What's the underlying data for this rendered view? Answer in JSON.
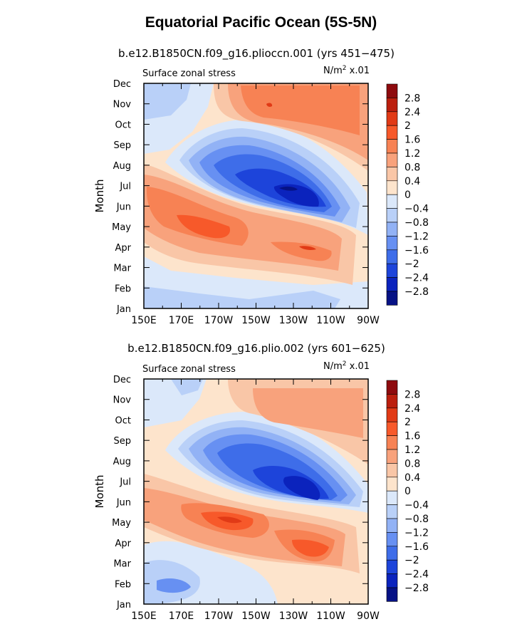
{
  "title": "Equatorial Pacific Ocean (5S-5N)",
  "colorbar": {
    "labels": [
      "2.8",
      "2.4",
      "2",
      "1.6",
      "1.2",
      "0.8",
      "0.4",
      "0",
      "−0.4",
      "−0.8",
      "−1.2",
      "−1.6",
      "−2",
      "−2.4",
      "−2.8"
    ],
    "colors": [
      "#8e0b0e",
      "#bb1f0e",
      "#e13a16",
      "#f7592a",
      "#f78254",
      "#f8a27c",
      "#f9c6a7",
      "#fde4cc",
      "#dbe8fa",
      "#b9d0f8",
      "#92b2f5",
      "#6790f2",
      "#3e6de9",
      "#1d44da",
      "#0b23bd",
      "#061285"
    ]
  },
  "chart_data": [
    {
      "type": "heatmap",
      "title": "b.e12.B1850CN.f09_g16.plioccn.001 (yrs 451−475)",
      "left_label": "Surface zonal stress",
      "right_label": "N/m² x.01",
      "ylabel": "Month",
      "xlabel": "",
      "x_ticks": [
        "150E",
        "170E",
        "170W",
        "150W",
        "130W",
        "110W",
        "90W"
      ],
      "y_ticks": [
        "Jan",
        "Feb",
        "Mar",
        "Apr",
        "May",
        "Jun",
        "Jul",
        "Aug",
        "Sep",
        "Oct",
        "Nov",
        "Dec"
      ],
      "x_range": [
        "150E",
        "90W"
      ],
      "y_range": [
        "Jan",
        "Dec"
      ],
      "units": "N/m² x.01",
      "contour_levels": [
        -2.8,
        -2.4,
        -2,
        -1.6,
        -1.2,
        -0.8,
        -0.4,
        0,
        0.4,
        0.8,
        1.2,
        1.6,
        2,
        2.4,
        2.8
      ],
      "features": [
        {
          "lon": 230,
          "month": 6.3,
          "value": -2.8
        },
        {
          "lon": 198,
          "month": 4.1,
          "value": 1.7
        },
        {
          "lon": 220,
          "month": 10.1,
          "value": 1.2
        },
        {
          "lon": 160,
          "month": 11.1,
          "value": -0.6
        }
      ]
    },
    {
      "type": "heatmap",
      "title": "b.e12.B1850CN.f09_g16.plio.002 (yrs 601−625)",
      "left_label": "Surface zonal stress",
      "right_label": "N/m² x.01",
      "ylabel": "Month",
      "xlabel": "",
      "x_ticks": [
        "150E",
        "170E",
        "170W",
        "150W",
        "130W",
        "110W",
        "90W"
      ],
      "y_ticks": [
        "Jan",
        "Feb",
        "Mar",
        "Apr",
        "May",
        "Jun",
        "Jul",
        "Aug",
        "Sep",
        "Oct",
        "Nov",
        "Dec"
      ],
      "x_range": [
        "150E",
        "90W"
      ],
      "y_range": [
        "Jan",
        "Dec"
      ],
      "units": "N/m² x.01",
      "contour_levels": [
        -2.8,
        -2.4,
        -2,
        -1.6,
        -1.2,
        -0.8,
        -0.4,
        0,
        0.4,
        0.8,
        1.2,
        1.6,
        2,
        2.4,
        2.8
      ],
      "features": [
        {
          "lon": 230,
          "month": 6.5,
          "value": -2.5
        },
        {
          "lon": 198,
          "month": 4.0,
          "value": 1.8
        },
        {
          "lon": 225,
          "month": 2.8,
          "value": 1.4
        },
        {
          "lon": 160,
          "month": 1.0,
          "value": -1.2
        }
      ]
    }
  ]
}
